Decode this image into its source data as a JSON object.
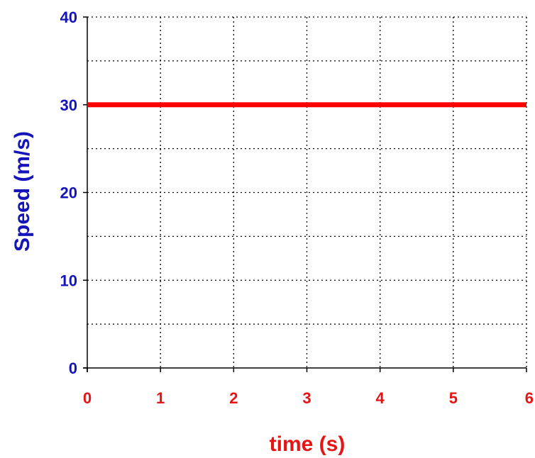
{
  "chart_data": {
    "type": "line",
    "title": "",
    "xlabel": "time (s)",
    "ylabel": "Speed (m/s)",
    "xlim": [
      0,
      6
    ],
    "ylim": [
      0,
      40
    ],
    "x_ticks": [
      0,
      1,
      2,
      3,
      4,
      5,
      6
    ],
    "y_ticks": [
      0,
      10,
      20,
      30,
      40
    ],
    "y_minor_gridlines": [
      5,
      15,
      25,
      35
    ],
    "grid": true,
    "grid_style": "dotted",
    "series": [
      {
        "x": [
          0,
          6
        ],
        "y": [
          30,
          30
        ],
        "color": "#ff0000"
      }
    ]
  },
  "colors": {
    "y_axis_text": "#1414b8",
    "x_axis_text": "#e61414",
    "series_line": "#ff0000",
    "grid": "#000000",
    "axis": "#000000"
  }
}
